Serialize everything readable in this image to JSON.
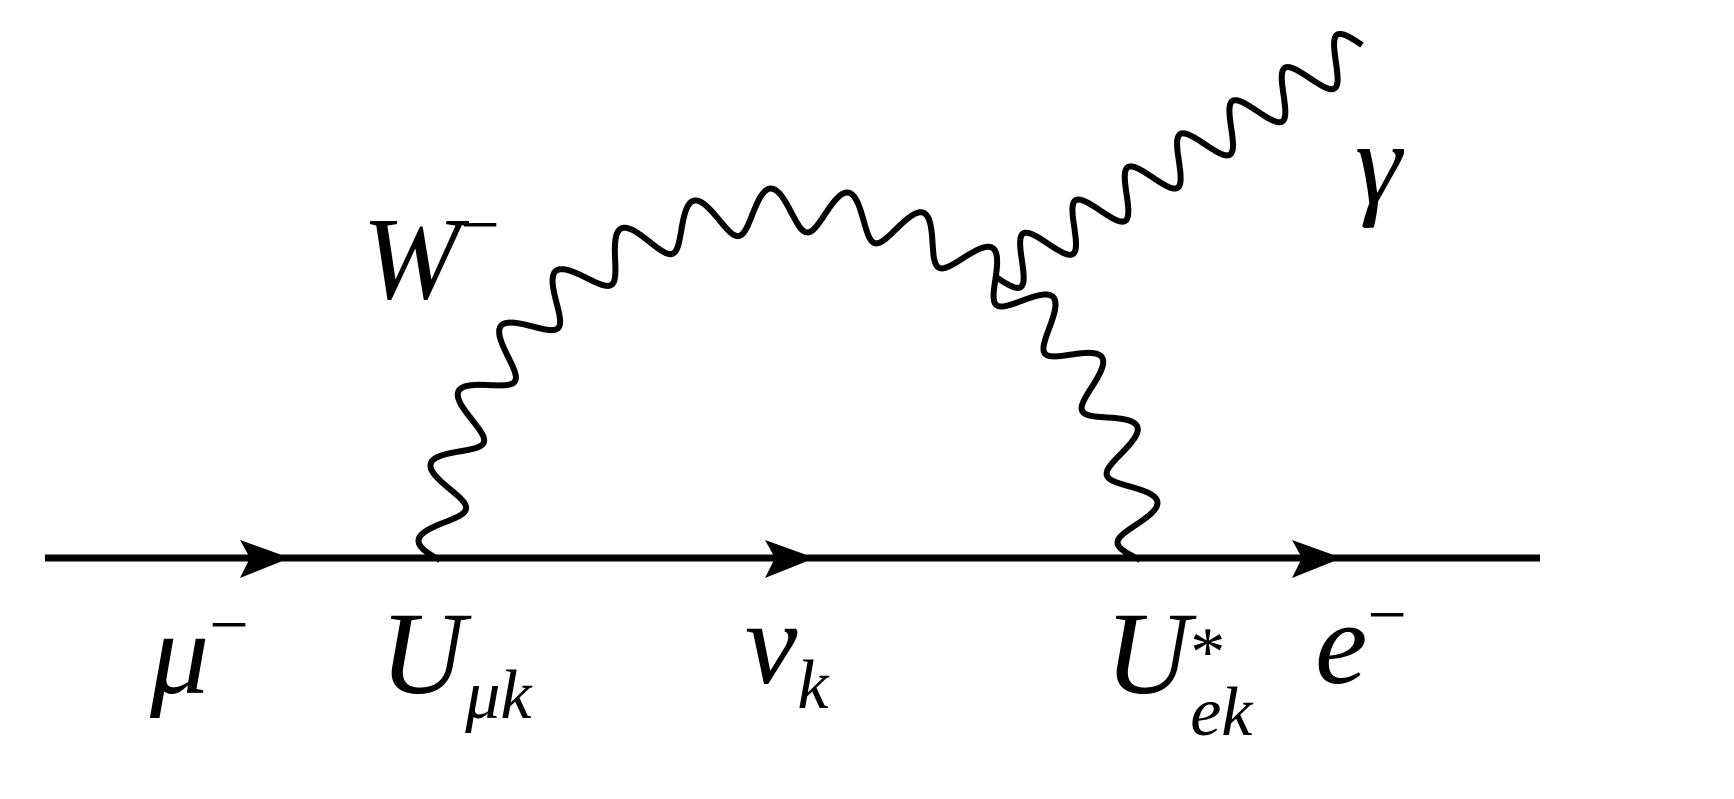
{
  "diagram": {
    "type": "feynman",
    "line_color": "#000000",
    "particles": {
      "incoming": {
        "symbol": "μ",
        "charge": "−"
      },
      "outgoing": {
        "symbol": "e",
        "charge": "−"
      },
      "internal_fermion": {
        "symbol": "ν",
        "sub": "k"
      },
      "boson": {
        "symbol": "W",
        "charge": "−"
      },
      "photon": {
        "symbol": "γ"
      }
    },
    "vertices": {
      "left": {
        "symbol": "U",
        "sub": "μk"
      },
      "right": {
        "symbol": "U",
        "sup": "*",
        "sub": "ek"
      }
    }
  }
}
